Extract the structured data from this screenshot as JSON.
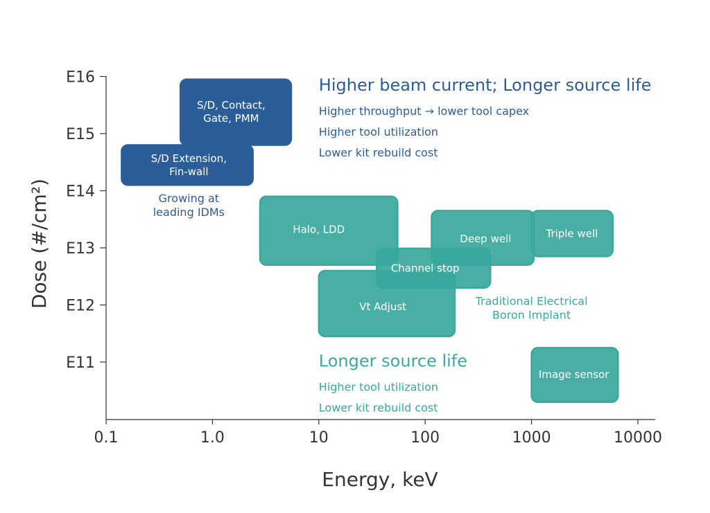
{
  "chart_data": {
    "type": "scatter",
    "subtype": "range-boxes",
    "title": "",
    "xlabel": "Energy, keV",
    "ylabel": "Dose (#/cm²)",
    "x_scale": "log",
    "xlim": [
      0.1,
      10000
    ],
    "ylim": [
      10,
      16
    ],
    "x_ticks": [
      {
        "value": 0.1,
        "label": "0.1"
      },
      {
        "value": 1,
        "label": "1.0"
      },
      {
        "value": 10,
        "label": "10"
      },
      {
        "value": 100,
        "label": "100"
      },
      {
        "value": 1000,
        "label": "1000"
      },
      {
        "value": 10000,
        "label": "10000"
      }
    ],
    "y_ticks": [
      {
        "value": 11,
        "label": "E11"
      },
      {
        "value": 12,
        "label": "E12"
      },
      {
        "value": 13,
        "label": "E13"
      },
      {
        "value": 14,
        "label": "E14"
      },
      {
        "value": 15,
        "label": "E15"
      },
      {
        "value": 16,
        "label": "E16"
      }
    ],
    "grid": false,
    "colors": {
      "dark_blue": "#2b5e98",
      "teal": "#3aa89c",
      "axis": "#333333"
    },
    "series": [
      {
        "label": "S/D, Contact, Gate, PMM",
        "label_lines": [
          "S/D, Contact,",
          "Gate, PMM"
        ],
        "x": [
          0.5,
          5.5
        ],
        "y": [
          14.8,
          15.95
        ],
        "color": "#2b5e98",
        "label_pos": [
          1.5,
          15.38
        ]
      },
      {
        "label": "S/D Extension, Fin-wall",
        "label_lines": [
          "S/D Extension,",
          "Fin-wall"
        ],
        "x": [
          0.14,
          2.4
        ],
        "y": [
          14.1,
          14.8
        ],
        "color": "#2b5e98",
        "label_pos": [
          0.6,
          14.45
        ]
      },
      {
        "label": "Halo, LDD",
        "label_lines": [
          "Halo, LDD"
        ],
        "x": [
          2.8,
          55
        ],
        "y": [
          12.7,
          13.9
        ],
        "color": "#3aa89c",
        "label_pos": [
          10,
          13.32
        ]
      },
      {
        "label": "Deep well",
        "label_lines": [
          "Deep well"
        ],
        "x": [
          115,
          1050
        ],
        "y": [
          12.7,
          13.65
        ],
        "color": "#3aa89c",
        "label_pos": [
          370,
          13.16
        ]
      },
      {
        "label": "Triple well",
        "label_lines": [
          "Triple well"
        ],
        "x": [
          1000,
          5800
        ],
        "y": [
          12.85,
          13.65
        ],
        "color": "#3aa89c",
        "label_pos": [
          2400,
          13.25
        ]
      },
      {
        "label": "Channel stop",
        "label_lines": [
          "Channel stop"
        ],
        "x": [
          35,
          410
        ],
        "y": [
          12.3,
          12.99
        ],
        "color": "#3aa89c",
        "label_pos": [
          100,
          12.64
        ]
      },
      {
        "label": "Vt Adjust",
        "label_lines": [
          "Vt Adjust"
        ],
        "x": [
          10,
          190
        ],
        "y": [
          11.45,
          12.6
        ],
        "color": "#3aa89c",
        "label_pos": [
          40,
          11.97
        ]
      },
      {
        "label": "Image sensor",
        "label_lines": [
          "Image sensor"
        ],
        "x": [
          1000,
          6500
        ],
        "y": [
          10.3,
          11.25
        ],
        "color": "#3aa89c",
        "label_pos": [
          2500,
          10.78
        ]
      }
    ],
    "annotations": [
      {
        "lines": [
          "Growing at",
          "leading IDMs"
        ],
        "x": 0.6,
        "y": 13.8,
        "color": "#2b5e98",
        "size": 16
      },
      {
        "lines": [
          "Traditional Electrical",
          "Boron Implant"
        ],
        "x": 1000,
        "y": 12.0,
        "color": "#3aa89c",
        "size": 16
      }
    ],
    "callouts": [
      {
        "heading": "Higher beam current; Longer source life",
        "items": [
          "Higher throughput → lower tool capex",
          "Higher tool utilization",
          "Lower kit rebuild cost"
        ],
        "color": "#2b5e98",
        "x": 10,
        "y": 15.75
      },
      {
        "heading": "Longer source life",
        "items": [
          "Higher tool utilization",
          "Lower kit rebuild cost"
        ],
        "color": "#3aa89c",
        "x": 10,
        "y": 10.92
      }
    ]
  }
}
